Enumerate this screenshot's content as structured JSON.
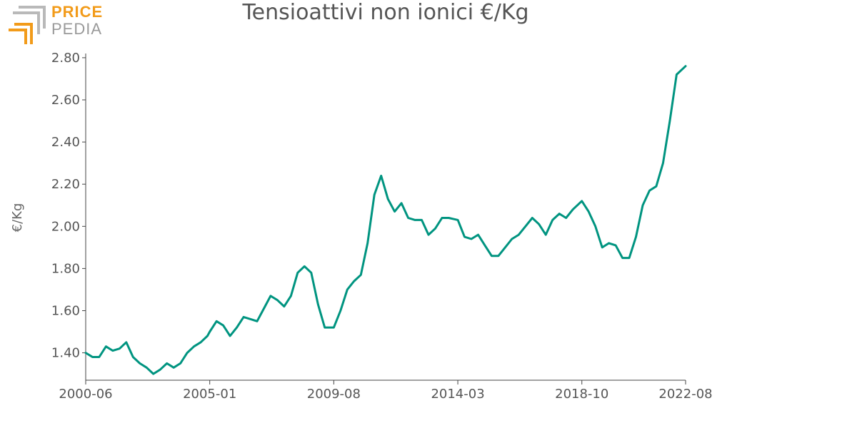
{
  "logo": {
    "word1": "PRICE",
    "word2": "PEDIA",
    "color1": "#f29b1a",
    "color2": "#9a9a9a"
  },
  "chart_data": {
    "type": "line",
    "title": "Tensioattivi non ionici €/Kg",
    "xlabel": "",
    "ylabel": "€/Kg",
    "ylim": [
      1.27,
      2.82
    ],
    "xlim": [
      "2000-06",
      "2022-08"
    ],
    "x_ticks": [
      "2000-06",
      "2005-01",
      "2009-08",
      "2014-03",
      "2018-10",
      "2022-08"
    ],
    "y_ticks": [
      "1.40",
      "1.60",
      "1.80",
      "2.00",
      "2.20",
      "2.40",
      "2.60",
      "2.80"
    ],
    "grid": false,
    "line_color": "#009480",
    "series": [
      {
        "x": [
          "2000-06",
          "2000-09",
          "2000-12",
          "2001-03",
          "2001-06",
          "2001-09",
          "2001-12",
          "2002-03",
          "2002-06",
          "2002-09",
          "2002-12",
          "2003-03",
          "2003-06",
          "2003-09",
          "2003-12",
          "2004-03",
          "2004-06",
          "2004-09",
          "2004-12",
          "2005-01",
          "2005-04",
          "2005-07",
          "2005-10",
          "2006-01",
          "2006-04",
          "2006-07",
          "2006-10",
          "2007-01",
          "2007-04",
          "2007-07",
          "2007-10",
          "2008-01",
          "2008-04",
          "2008-07",
          "2008-10",
          "2009-01",
          "2009-04",
          "2009-08",
          "2009-11",
          "2010-02",
          "2010-05",
          "2010-08",
          "2010-11",
          "2011-02",
          "2011-05",
          "2011-08",
          "2011-11",
          "2012-02",
          "2012-05",
          "2012-08",
          "2012-11",
          "2013-02",
          "2013-05",
          "2013-08",
          "2013-11",
          "2014-03",
          "2014-06",
          "2014-09",
          "2014-12",
          "2015-03",
          "2015-06",
          "2015-09",
          "2015-12",
          "2016-03",
          "2016-06",
          "2016-09",
          "2016-12",
          "2017-03",
          "2017-06",
          "2017-09",
          "2017-12",
          "2018-03",
          "2018-06",
          "2018-10",
          "2019-01",
          "2019-04",
          "2019-07",
          "2019-10",
          "2020-01",
          "2020-04",
          "2020-07",
          "2020-10",
          "2021-01",
          "2021-04",
          "2021-07",
          "2021-10",
          "2022-01",
          "2022-04",
          "2022-08"
        ],
        "y": [
          1.4,
          1.38,
          1.38,
          1.43,
          1.41,
          1.42,
          1.45,
          1.38,
          1.35,
          1.33,
          1.3,
          1.32,
          1.35,
          1.33,
          1.35,
          1.4,
          1.43,
          1.45,
          1.48,
          1.5,
          1.55,
          1.53,
          1.48,
          1.52,
          1.57,
          1.56,
          1.55,
          1.61,
          1.67,
          1.65,
          1.62,
          1.67,
          1.78,
          1.81,
          1.78,
          1.63,
          1.52,
          1.52,
          1.6,
          1.7,
          1.74,
          1.77,
          1.92,
          2.15,
          2.24,
          2.13,
          2.07,
          2.11,
          2.04,
          2.03,
          2.03,
          1.96,
          1.99,
          2.04,
          2.04,
          2.03,
          1.95,
          1.94,
          1.96,
          1.91,
          1.86,
          1.86,
          1.9,
          1.94,
          1.96,
          2.0,
          2.04,
          2.01,
          1.96,
          2.03,
          2.06,
          2.04,
          2.08,
          2.12,
          2.07,
          2.0,
          1.9,
          1.92,
          1.91,
          1.85,
          1.85,
          1.95,
          2.1,
          2.17,
          2.19,
          2.3,
          2.5,
          2.72,
          2.76
        ]
      }
    ]
  }
}
